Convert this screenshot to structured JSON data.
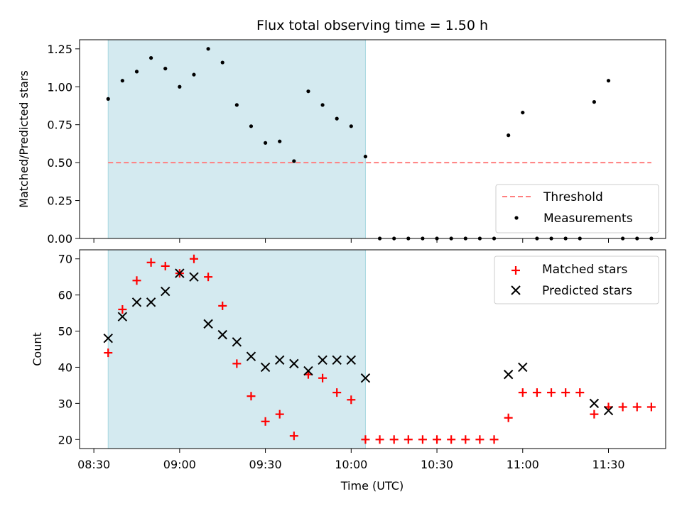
{
  "chart_data": [
    {
      "type": "scatter",
      "title": "Flux total observing time = 1.50 h",
      "ylabel": "Matched/Predicted stars",
      "xlabel": "",
      "ylim": [
        0,
        1.31
      ],
      "yticks": [
        "0.00",
        "0.25",
        "0.50",
        "0.75",
        "1.00",
        "1.25"
      ],
      "ytick_values": [
        0,
        0.25,
        0.5,
        0.75,
        1.0,
        1.25
      ],
      "shaded_region": [
        "08:35",
        "10:05"
      ],
      "legend_position": "lower right",
      "series": [
        {
          "name": "Threshold",
          "style": "dashed-line",
          "x": [
            "08:35",
            "11:45"
          ],
          "y": [
            0.5,
            0.5
          ]
        },
        {
          "name": "Measurements",
          "style": "dot",
          "x": [
            "08:35",
            "08:40",
            "08:45",
            "08:50",
            "08:55",
            "09:00",
            "09:05",
            "09:10",
            "09:15",
            "09:20",
            "09:25",
            "09:30",
            "09:35",
            "09:40",
            "09:45",
            "09:50",
            "09:55",
            "10:00",
            "10:05",
            "10:10",
            "10:15",
            "10:20",
            "10:25",
            "10:30",
            "10:35",
            "10:40",
            "10:45",
            "10:50",
            "10:55",
            "11:00",
            "11:05",
            "11:10",
            "11:15",
            "11:20",
            "11:25",
            "11:30",
            "11:35",
            "11:40",
            "11:45"
          ],
          "y": [
            0.92,
            1.04,
            1.1,
            1.19,
            1.12,
            1.0,
            1.08,
            1.25,
            1.16,
            0.88,
            0.74,
            0.63,
            0.64,
            0.51,
            0.97,
            0.88,
            0.79,
            0.74,
            0.54,
            0,
            0,
            0,
            0,
            0,
            0,
            0,
            0,
            0,
            0.68,
            0.83,
            0,
            0,
            0,
            0,
            0.9,
            1.04,
            0,
            0,
            0
          ]
        }
      ]
    },
    {
      "type": "scatter",
      "title": "",
      "ylabel": "Count",
      "xlabel": "Time (UTC)",
      "ylim": [
        17.5,
        72.5
      ],
      "yticks": [
        "20",
        "30",
        "40",
        "50",
        "60",
        "70"
      ],
      "ytick_values": [
        20,
        30,
        40,
        50,
        60,
        70
      ],
      "xticks": [
        "08:30",
        "09:00",
        "09:30",
        "10:00",
        "10:30",
        "11:00",
        "11:30"
      ],
      "shaded_region": [
        "08:35",
        "10:05"
      ],
      "legend_position": "upper right",
      "series": [
        {
          "name": "Matched stars",
          "style": "plus",
          "color": "#ff0000",
          "x": [
            "08:35",
            "08:40",
            "08:45",
            "08:50",
            "08:55",
            "09:00",
            "09:05",
            "09:10",
            "09:15",
            "09:20",
            "09:25",
            "09:30",
            "09:35",
            "09:40",
            "09:45",
            "09:50",
            "09:55",
            "10:00",
            "10:05",
            "10:10",
            "10:15",
            "10:20",
            "10:25",
            "10:30",
            "10:35",
            "10:40",
            "10:45",
            "10:50",
            "10:55",
            "11:00",
            "11:05",
            "11:10",
            "11:15",
            "11:20",
            "11:25",
            "11:30",
            "11:35",
            "11:40",
            "11:45"
          ],
          "y": [
            44,
            56,
            64,
            69,
            68,
            66,
            70,
            65,
            57,
            41,
            32,
            25,
            27,
            21,
            38,
            37,
            33,
            31,
            20,
            20,
            20,
            20,
            20,
            20,
            20,
            20,
            20,
            20,
            26,
            33,
            33,
            33,
            33,
            33,
            27,
            29,
            29,
            29,
            29
          ]
        },
        {
          "name": "Predicted stars",
          "style": "x",
          "color": "#000000",
          "x": [
            "08:35",
            "08:40",
            "08:45",
            "08:50",
            "08:55",
            "09:00",
            "09:05",
            "09:10",
            "09:15",
            "09:20",
            "09:25",
            "09:30",
            "09:35",
            "09:40",
            "09:45",
            "09:50",
            "09:55",
            "10:00",
            "10:05",
            "10:55",
            "11:00",
            "11:25",
            "11:30"
          ],
          "y": [
            48,
            54,
            58,
            58,
            61,
            66,
            65,
            52,
            49,
            47,
            43,
            40,
            42,
            41,
            39,
            42,
            42,
            42,
            37,
            38,
            40,
            30,
            28
          ]
        }
      ]
    }
  ],
  "colors": {
    "shade": "#d4eaf0",
    "shade_edge": "#a8d8e0",
    "threshold": "#ff7f7f",
    "matched": "#ff0000",
    "predicted": "#000000",
    "measurement": "#000000"
  }
}
